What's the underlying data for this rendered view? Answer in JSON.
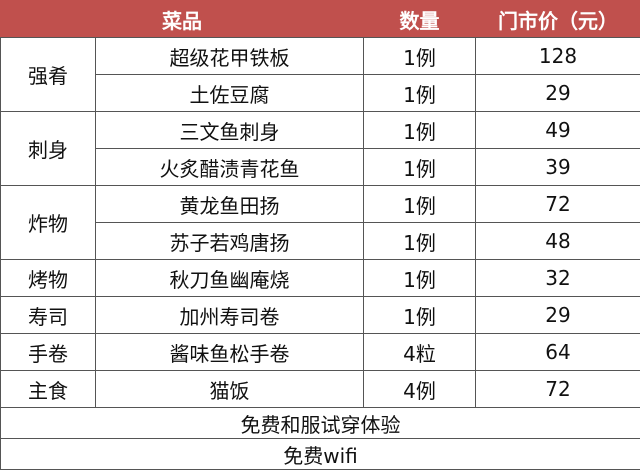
{
  "header": {
    "dish": "菜品",
    "qty": "数量",
    "price": "门市价（元）"
  },
  "accent_color": "#c0504d",
  "groups": [
    {
      "category": "强肴",
      "items": [
        {
          "name": "超级花甲铁板",
          "qty": "1例",
          "price": "128"
        },
        {
          "name": "土佐豆腐",
          "qty": "1例",
          "price": "29"
        }
      ]
    },
    {
      "category": "刺身",
      "items": [
        {
          "name": "三文鱼刺身",
          "qty": "1例",
          "price": "49"
        },
        {
          "name": "火炙醋渍青花鱼",
          "qty": "1例",
          "price": "39"
        }
      ]
    },
    {
      "category": "炸物",
      "items": [
        {
          "name": "黄龙鱼田扬",
          "qty": "1例",
          "price": "72"
        },
        {
          "name": "苏子若鸡唐扬",
          "qty": "1例",
          "price": "48"
        }
      ]
    },
    {
      "category": "烤物",
      "items": [
        {
          "name": "秋刀鱼幽庵烧",
          "qty": "1例",
          "price": "32"
        }
      ]
    },
    {
      "category": "寿司",
      "items": [
        {
          "name": "加州寿司卷",
          "qty": "1例",
          "price": "29"
        }
      ]
    },
    {
      "category": "手卷",
      "items": [
        {
          "name": "酱味鱼松手卷",
          "qty": "4粒",
          "price": "64"
        }
      ]
    },
    {
      "category": "主食",
      "items": [
        {
          "name": "猫饭",
          "qty": "4例",
          "price": "72"
        }
      ]
    }
  ],
  "footer": [
    "免费和服试穿体验",
    "免费wifi"
  ]
}
